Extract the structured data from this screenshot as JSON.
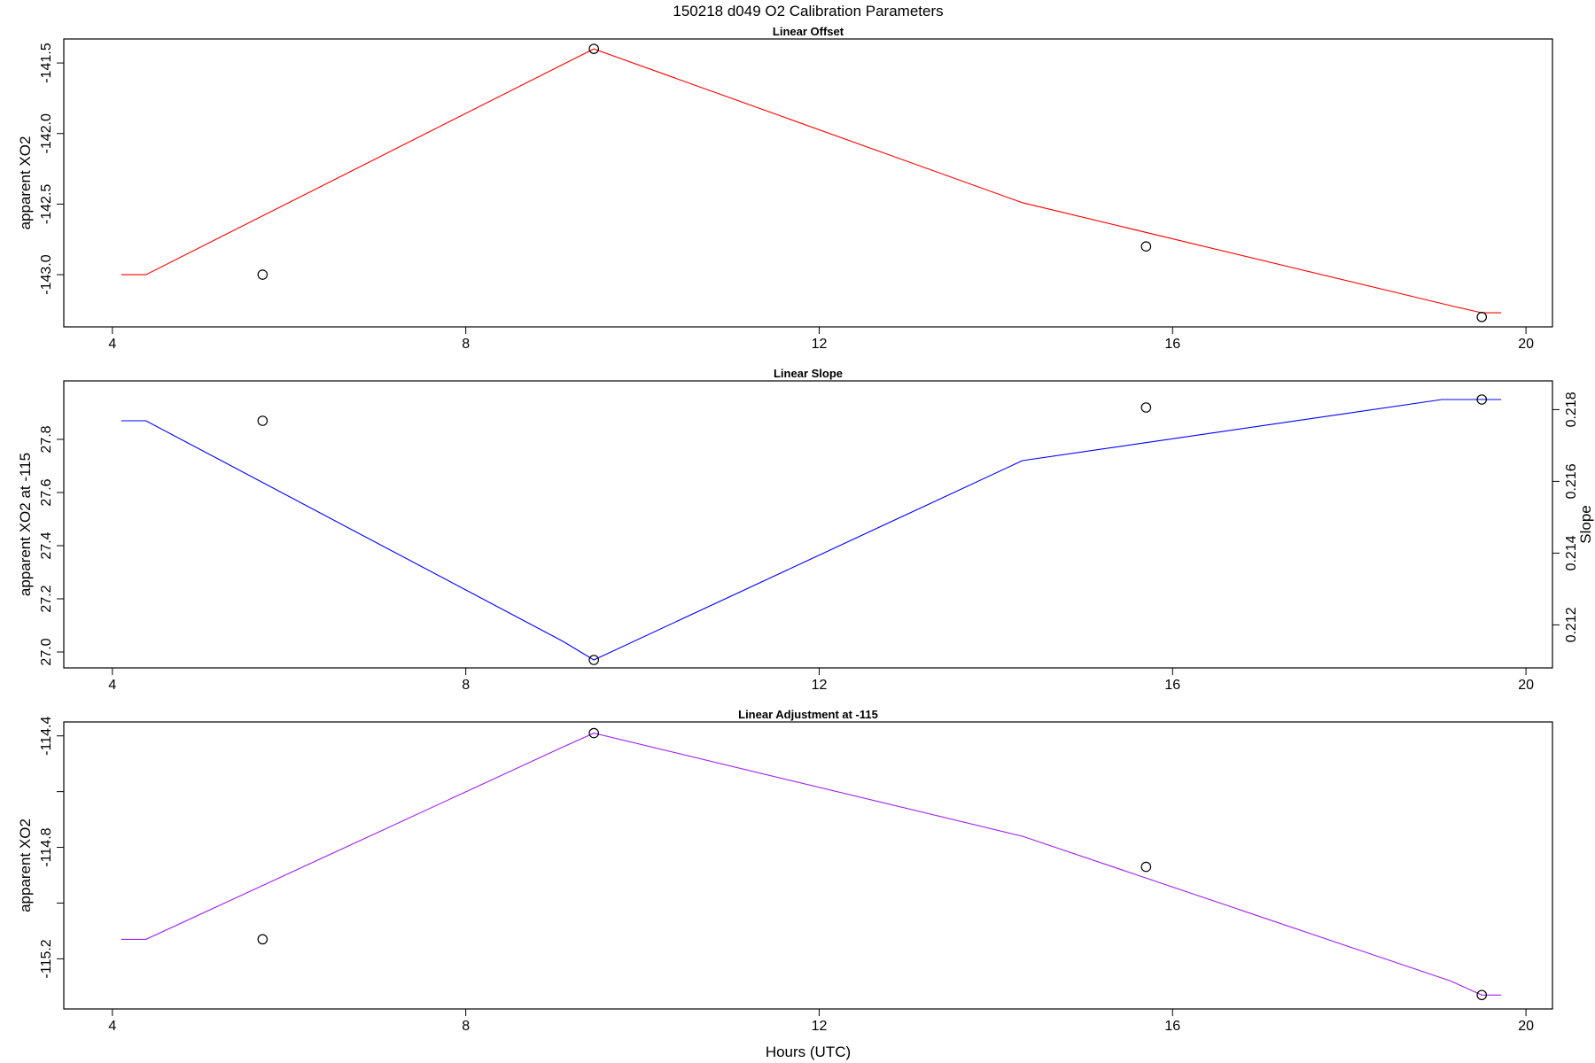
{
  "figure": {
    "title": "150218   d049   O2 Calibration Parameters",
    "xlabel": "Hours (UTC)"
  },
  "chart_data": [
    {
      "type": "line",
      "title": "Linear Offset",
      "xlabel": "",
      "ylabel": "apparent XO2",
      "xlim": [
        3.45,
        20.3
      ],
      "ylim": [
        -143.37,
        -141.33
      ],
      "xticks": [
        4,
        8,
        12,
        16,
        20
      ],
      "yticks": [
        -143.0,
        -142.5,
        -142.0,
        -141.5
      ],
      "ytick_labels": [
        "-143.0",
        "-142.5",
        "-142.0",
        "-141.5"
      ],
      "series": [
        {
          "color": "#ff0000",
          "x": [
            4.1,
            4.38,
            9.1,
            9.45,
            14.3,
            19.15,
            19.5,
            19.72
          ],
          "y": [
            -143.0,
            -143.0,
            -141.51,
            -141.4,
            -142.49,
            -143.22,
            -143.27,
            -143.27
          ]
        }
      ],
      "points": {
        "x": [
          5.7,
          9.45,
          15.7,
          19.5
        ],
        "y": [
          -143.0,
          -141.4,
          -142.8,
          -143.3
        ]
      }
    },
    {
      "type": "line",
      "title": "Linear Slope",
      "xlabel": "",
      "ylabel": "apparent XO2 at -115",
      "ylabel_right": "Slope",
      "xlim": [
        3.45,
        20.3
      ],
      "ylim": [
        26.94,
        28.02
      ],
      "xticks": [
        4,
        8,
        12,
        16,
        20
      ],
      "yticks": [
        27.0,
        27.2,
        27.4,
        27.6,
        27.8
      ],
      "ytick_labels": [
        "27.0",
        "27.2",
        "27.4",
        "27.6",
        "27.8"
      ],
      "right_axis": {
        "ylim": [
          0.2108,
          0.2188
        ],
        "ticks": [
          0.212,
          0.214,
          0.216,
          0.218
        ],
        "tick_labels": [
          "0.212",
          "0.214",
          "0.216",
          "0.218"
        ]
      },
      "series": [
        {
          "color": "#0000ff",
          "x": [
            4.1,
            4.38,
            9.1,
            9.45,
            14.3,
            19.05,
            19.5,
            19.72
          ],
          "y": [
            27.87,
            27.87,
            27.04,
            26.97,
            27.72,
            27.95,
            27.95,
            27.95
          ]
        }
      ],
      "points": {
        "x": [
          5.7,
          9.45,
          15.7,
          19.5
        ],
        "y": [
          27.87,
          26.97,
          27.92,
          27.95
        ]
      }
    },
    {
      "type": "line",
      "title": "Linear Adjustment at -115",
      "xlabel": "",
      "ylabel": "apparent XO2",
      "xlim": [
        3.45,
        20.3
      ],
      "ylim": [
        -115.38,
        -114.35
      ],
      "xticks": [
        4,
        8,
        12,
        16,
        20
      ],
      "yticks": [
        -115.2,
        -115.0,
        -114.8,
        -114.6,
        -114.4
      ],
      "ytick_labels": [
        "-115.2",
        "",
        "-114.8",
        "",
        "-114.4"
      ],
      "series": [
        {
          "color": "#a020f0",
          "x": [
            4.1,
            4.38,
            9.1,
            9.45,
            14.3,
            19.15,
            19.5,
            19.72
          ],
          "y": [
            -115.13,
            -115.13,
            -114.44,
            -114.39,
            -114.76,
            -115.28,
            -115.33,
            -115.33
          ]
        }
      ],
      "points": {
        "x": [
          5.7,
          9.45,
          15.7,
          19.5
        ],
        "y": [
          -115.13,
          -114.39,
          -114.87,
          -115.33
        ]
      }
    }
  ]
}
